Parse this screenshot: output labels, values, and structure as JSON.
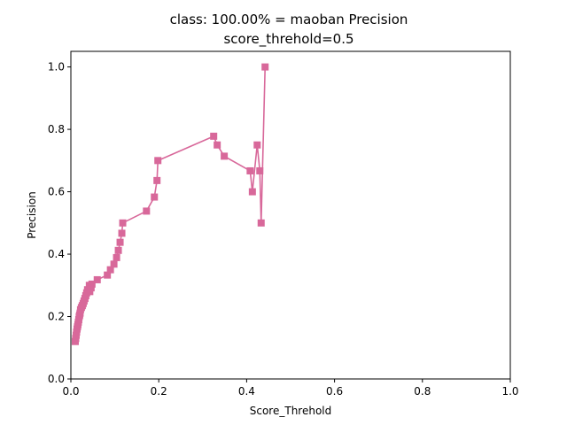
{
  "chart_data": {
    "type": "line",
    "title": "class: 100.00% = maoban Precision",
    "subtitle": "score_threhold=0.5",
    "xlabel": "Score_Threhold",
    "ylabel": "Precision",
    "xlim": [
      0,
      1
    ],
    "ylim": [
      0,
      1.05
    ],
    "xticks": [
      "0.0",
      "0.2",
      "0.4",
      "0.6",
      "0.8",
      "1.0"
    ],
    "yticks": [
      "0.0",
      "0.2",
      "0.4",
      "0.6",
      "0.8",
      "1.0"
    ],
    "grid": false,
    "marker": "square",
    "color": "#d8689a",
    "series": [
      {
        "x": [
          0.442,
          0.433,
          0.43,
          0.424,
          0.413,
          0.408,
          0.349,
          0.333,
          0.325,
          0.198,
          0.196,
          0.19,
          0.172,
          0.118,
          0.116,
          0.112,
          0.108,
          0.104,
          0.098,
          0.09,
          0.083,
          0.06,
          0.048,
          0.046,
          0.043,
          0.042,
          0.038,
          0.036,
          0.034,
          0.032,
          0.03,
          0.028,
          0.026,
          0.024,
          0.022,
          0.021,
          0.02,
          0.019,
          0.018,
          0.017,
          0.016,
          0.015,
          0.014,
          0.013,
          0.012,
          0.011,
          0.01
        ],
        "y": [
          1.0,
          0.5,
          0.667,
          0.75,
          0.6,
          0.667,
          0.714,
          0.75,
          0.778,
          0.7,
          0.636,
          0.583,
          0.538,
          0.5,
          0.467,
          0.438,
          0.412,
          0.389,
          0.368,
          0.35,
          0.333,
          0.318,
          0.304,
          0.292,
          0.28,
          0.3,
          0.286,
          0.276,
          0.267,
          0.258,
          0.25,
          0.242,
          0.235,
          0.229,
          0.222,
          0.211,
          0.205,
          0.2,
          0.19,
          0.182,
          0.174,
          0.167,
          0.16,
          0.15,
          0.14,
          0.13,
          0.12
        ]
      }
    ]
  }
}
